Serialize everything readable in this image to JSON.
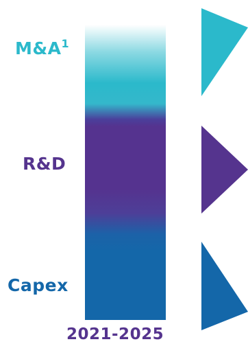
{
  "categories": [
    {
      "key": "ma",
      "label": "M&A",
      "footnote": "1",
      "color": "#2bb9cb"
    },
    {
      "key": "rd",
      "label": "R&D",
      "color": "#55348e"
    },
    {
      "key": "capex",
      "label": "Capex",
      "color": "#1467a9"
    }
  ],
  "period": "2021-2025"
}
